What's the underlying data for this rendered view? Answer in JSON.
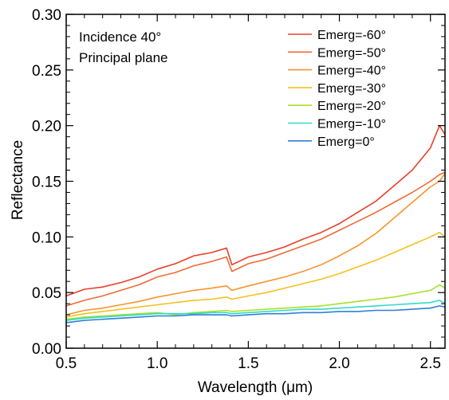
{
  "chart_data": {
    "type": "line",
    "title": "",
    "xlabel": "Wavelength (μm)",
    "ylabel": "Reflectance",
    "xlim": [
      0.5,
      2.58
    ],
    "ylim": [
      0.0,
      0.3
    ],
    "x_ticks": [
      "0.5",
      "1.0",
      "1.5",
      "2.0",
      "2.5"
    ],
    "y_ticks": [
      "0.00",
      "0.05",
      "0.10",
      "0.15",
      "0.20",
      "0.25",
      "0.30"
    ],
    "annotations": [
      "Incidence  40°",
      "Principal plane"
    ],
    "grid": false,
    "legend_position": "top-right",
    "x": [
      0.5,
      0.6,
      0.7,
      0.8,
      0.9,
      1.0,
      1.1,
      1.2,
      1.3,
      1.38,
      1.41,
      1.5,
      1.6,
      1.7,
      1.8,
      1.9,
      2.0,
      2.1,
      2.2,
      2.3,
      2.4,
      2.5,
      2.55,
      2.58
    ],
    "series": [
      {
        "name": "Emerg=-60°",
        "color": "#e8402a",
        "values": [
          0.047,
          0.053,
          0.055,
          0.059,
          0.064,
          0.071,
          0.076,
          0.083,
          0.086,
          0.09,
          0.075,
          0.082,
          0.086,
          0.091,
          0.098,
          0.104,
          0.112,
          0.122,
          0.132,
          0.146,
          0.16,
          0.18,
          0.2,
          0.192
        ]
      },
      {
        "name": "Emerg=-50°",
        "color": "#f06a35",
        "values": [
          0.038,
          0.043,
          0.047,
          0.052,
          0.057,
          0.064,
          0.068,
          0.074,
          0.078,
          0.082,
          0.069,
          0.076,
          0.08,
          0.086,
          0.092,
          0.098,
          0.106,
          0.114,
          0.122,
          0.131,
          0.14,
          0.15,
          0.156,
          0.158
        ]
      },
      {
        "name": "Emerg=-40°",
        "color": "#f4962c",
        "values": [
          0.03,
          0.034,
          0.036,
          0.039,
          0.042,
          0.046,
          0.049,
          0.052,
          0.054,
          0.056,
          0.052,
          0.056,
          0.06,
          0.064,
          0.069,
          0.075,
          0.083,
          0.092,
          0.103,
          0.117,
          0.131,
          0.145,
          0.15,
          0.157
        ]
      },
      {
        "name": "Emerg=-30°",
        "color": "#f5c020",
        "values": [
          0.028,
          0.031,
          0.033,
          0.035,
          0.037,
          0.039,
          0.041,
          0.043,
          0.044,
          0.046,
          0.044,
          0.047,
          0.05,
          0.054,
          0.058,
          0.062,
          0.067,
          0.073,
          0.079,
          0.086,
          0.093,
          0.1,
          0.104,
          0.1
        ]
      },
      {
        "name": "Emerg=-20°",
        "color": "#a7e02c",
        "values": [
          0.026,
          0.028,
          0.029,
          0.03,
          0.031,
          0.032,
          0.03,
          0.032,
          0.033,
          0.034,
          0.033,
          0.034,
          0.035,
          0.036,
          0.037,
          0.038,
          0.04,
          0.042,
          0.044,
          0.046,
          0.049,
          0.052,
          0.057,
          0.054
        ]
      },
      {
        "name": "Emerg=-10°",
        "color": "#31dcc8",
        "values": [
          0.025,
          0.027,
          0.028,
          0.029,
          0.03,
          0.031,
          0.031,
          0.031,
          0.032,
          0.032,
          0.031,
          0.032,
          0.033,
          0.034,
          0.035,
          0.035,
          0.036,
          0.037,
          0.038,
          0.039,
          0.04,
          0.041,
          0.043,
          0.04
        ]
      },
      {
        "name": "Emerg=0°",
        "color": "#2f7fd6",
        "values": [
          0.023,
          0.025,
          0.026,
          0.027,
          0.028,
          0.029,
          0.029,
          0.03,
          0.03,
          0.03,
          0.029,
          0.03,
          0.031,
          0.031,
          0.032,
          0.032,
          0.033,
          0.033,
          0.034,
          0.034,
          0.035,
          0.036,
          0.038,
          0.037
        ]
      }
    ]
  }
}
